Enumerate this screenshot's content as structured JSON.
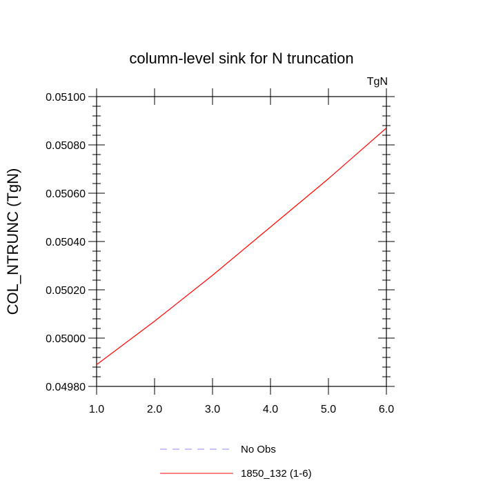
{
  "chart_data": {
    "type": "line",
    "title": "column-level sink for N truncation",
    "units_label": "TgN",
    "xlabel": "",
    "ylabel": "COL_NTRUNC  (TgN)",
    "xlim": [
      1.0,
      6.0
    ],
    "ylim": [
      0.0498,
      0.051
    ],
    "x_ticks": [
      1.0,
      2.0,
      3.0,
      4.0,
      5.0,
      6.0
    ],
    "x_tick_labels": [
      "1.0",
      "2.0",
      "3.0",
      "4.0",
      "5.0",
      "6.0"
    ],
    "y_ticks": [
      0.0498,
      0.05,
      0.0502,
      0.0504,
      0.0506,
      0.0508,
      0.051
    ],
    "y_tick_labels": [
      "0.04980",
      "0.05000",
      "0.05020",
      "0.05040",
      "0.05060",
      "0.05080",
      "0.05100"
    ],
    "grid": false,
    "legend_position": "bottom",
    "series": [
      {
        "name": "No Obs",
        "style": "dashed",
        "color": "#8a8aff",
        "x": [],
        "y": []
      },
      {
        "name": "1850_132 (1-6)",
        "style": "solid",
        "color": "#ff0000",
        "x": [
          1.0,
          2.0,
          3.0,
          4.0,
          5.0,
          6.0
        ],
        "y": [
          0.04989,
          0.05007,
          0.05026,
          0.05046,
          0.05066,
          0.05087
        ]
      }
    ]
  }
}
